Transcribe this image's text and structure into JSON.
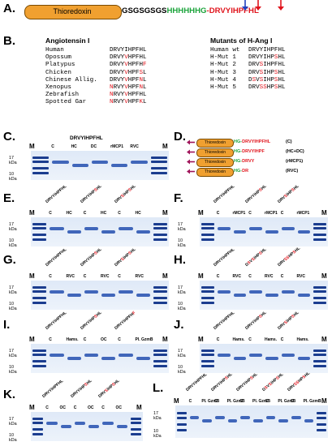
{
  "panels": {
    "A": "A.",
    "B": "B.",
    "C": "C.",
    "D": "D.",
    "E": "E.",
    "F": "F.",
    "G": "G.",
    "H": "H.",
    "I": "I.",
    "J": "J.",
    "K": "K.",
    "L": "L."
  },
  "panelA": {
    "thio": "Thioredoxin",
    "linker": "GSGSGSGS",
    "his": "HHHHHHG",
    "pre": "-DRV",
    "y": "Y",
    "mid": "IHPF",
    "h": "H",
    "end": "L"
  },
  "panelB": {
    "left_title": "Angiotensin I",
    "right_title": "Mutants of H-Ang I",
    "left_rows": [
      {
        "name": "Human",
        "seq": "DRVYIHPFHL"
      },
      {
        "name": "Opossum",
        "seq": "DRVYVHPFHL"
      },
      {
        "name": "Platypus",
        "seq": "DRVYVHPFHF"
      },
      {
        "name": "Chicken",
        "seq": "DRVYVHPFSL"
      },
      {
        "name": "Chinese Allig.",
        "seq": "DRVYVHPFNL"
      },
      {
        "name": "Xenopus",
        "seq": "NRVYVHPFNL"
      },
      {
        "name": "Zebrafish",
        "seq": "NRVYVHPFHL"
      },
      {
        "name": "Spotted Gar",
        "seq": "NRVYVHPFKL"
      }
    ],
    "right_rows": [
      {
        "name": "Human wt",
        "seq": "DRVYIHPFHL"
      },
      {
        "name": "H-Mut 1",
        "seq": "DRVYIHPSHL"
      },
      {
        "name": "H-Mut 2",
        "seq": "DRVSIHPFHL"
      },
      {
        "name": "H-Mut 3",
        "seq": "DRVSIHPSHL"
      },
      {
        "name": "H-Mut 4",
        "seq": "DSVSIHPSHL"
      },
      {
        "name": "H-Mut 5",
        "seq": "DRVSSHPSHL"
      }
    ]
  },
  "gel": {
    "M": "M",
    "kda17": "17 kDa",
    "kda10": "10 kDa",
    "kda17s": "17",
    "kda10s": "10",
    "kdas": "kDa"
  },
  "panelC": {
    "title": "DRVYIHPFHL",
    "lanes": [
      "C",
      "HC",
      "DC",
      "rMCP1",
      "RVC"
    ]
  },
  "panelD": {
    "thio": "Thioredoxin",
    "rows": [
      {
        "hg": "HG-",
        "seq": "DRVYIHPFHL",
        "tag": "(C)"
      },
      {
        "hg": "HG-",
        "seq": "DRVYIHPF",
        "tag": "(HC+DC)"
      },
      {
        "hg": "HG-",
        "seq": "DRVY",
        "tag": "(rMCP1)"
      },
      {
        "hg": "HG-",
        "seq": "DR",
        "tag": "(RVC)"
      }
    ]
  },
  "panelE": {
    "seqs": [
      "DRVYIHPFHL",
      "DRVYIHPSHL",
      "DRVSIHPSHL"
    ],
    "lanes": [
      "C",
      "HC",
      "C",
      "HC",
      "C",
      "HC"
    ]
  },
  "panelF": {
    "seqs": [
      "DRVYIHPFHL",
      "DRVYIHPSHL",
      "DRVSIHPSHL"
    ],
    "lanes": [
      "C",
      "rMCP1",
      "C",
      "rMCP1",
      "C",
      "rMCP1"
    ]
  },
  "panelG": {
    "seqs": [
      "DRVYIHPFHL",
      "DRVYIHPSHL",
      "DRVSIHPSHL"
    ],
    "lanes": [
      "C",
      "RVC",
      "C",
      "RVC",
      "C",
      "RVC"
    ]
  },
  "panelH": {
    "seqs": [
      "DRVYIHPFHL",
      "DSVSIHPSHL",
      "DRVSSHPSHL"
    ],
    "lanes": [
      "C",
      "RVC",
      "C",
      "RVC",
      "C",
      "RVC"
    ]
  },
  "panelI": {
    "seqs": [
      "DRVYIHPFHL",
      "DRVYIHPSHL",
      "DRVYIHPFHF"
    ],
    "lanes": [
      "C",
      "Hams.",
      "C",
      "OC",
      "C",
      "PI. GzmB"
    ]
  },
  "panelJ": {
    "seqs": [
      "DRVYIHPFHL",
      "DRVYIHPSHL",
      "DRVSIHPSHL"
    ],
    "lanes": [
      "C",
      "Hams.",
      "C",
      "Hams.",
      "C",
      "Hams."
    ]
  },
  "panelK": {
    "seqs": [
      "DRVYIHPFHL",
      "DRVYIHPSHL",
      "DRVSIHPSHL"
    ],
    "lanes": [
      "C",
      "OC",
      "C",
      "OC",
      "C",
      "OC"
    ]
  },
  "panelL": {
    "seqs": [
      "DRVYIHPFHL",
      "DRVYIHPSHL",
      "DRVYIHPSHL",
      "DSVSIHPSHL",
      "DRVSSHPSHL"
    ],
    "lanes": [
      "C",
      "PI. GzmB",
      "C",
      "PI. GzmB",
      "C",
      "PI. GzmB",
      "C",
      "PI. GzmB",
      "C",
      "PI. GzmB"
    ]
  },
  "colors": {
    "red": "#e0141c",
    "green": "#1aa33a",
    "orange": "#f0a030",
    "blue": "#2d57b3",
    "arrow_blue": "#2040c0"
  }
}
